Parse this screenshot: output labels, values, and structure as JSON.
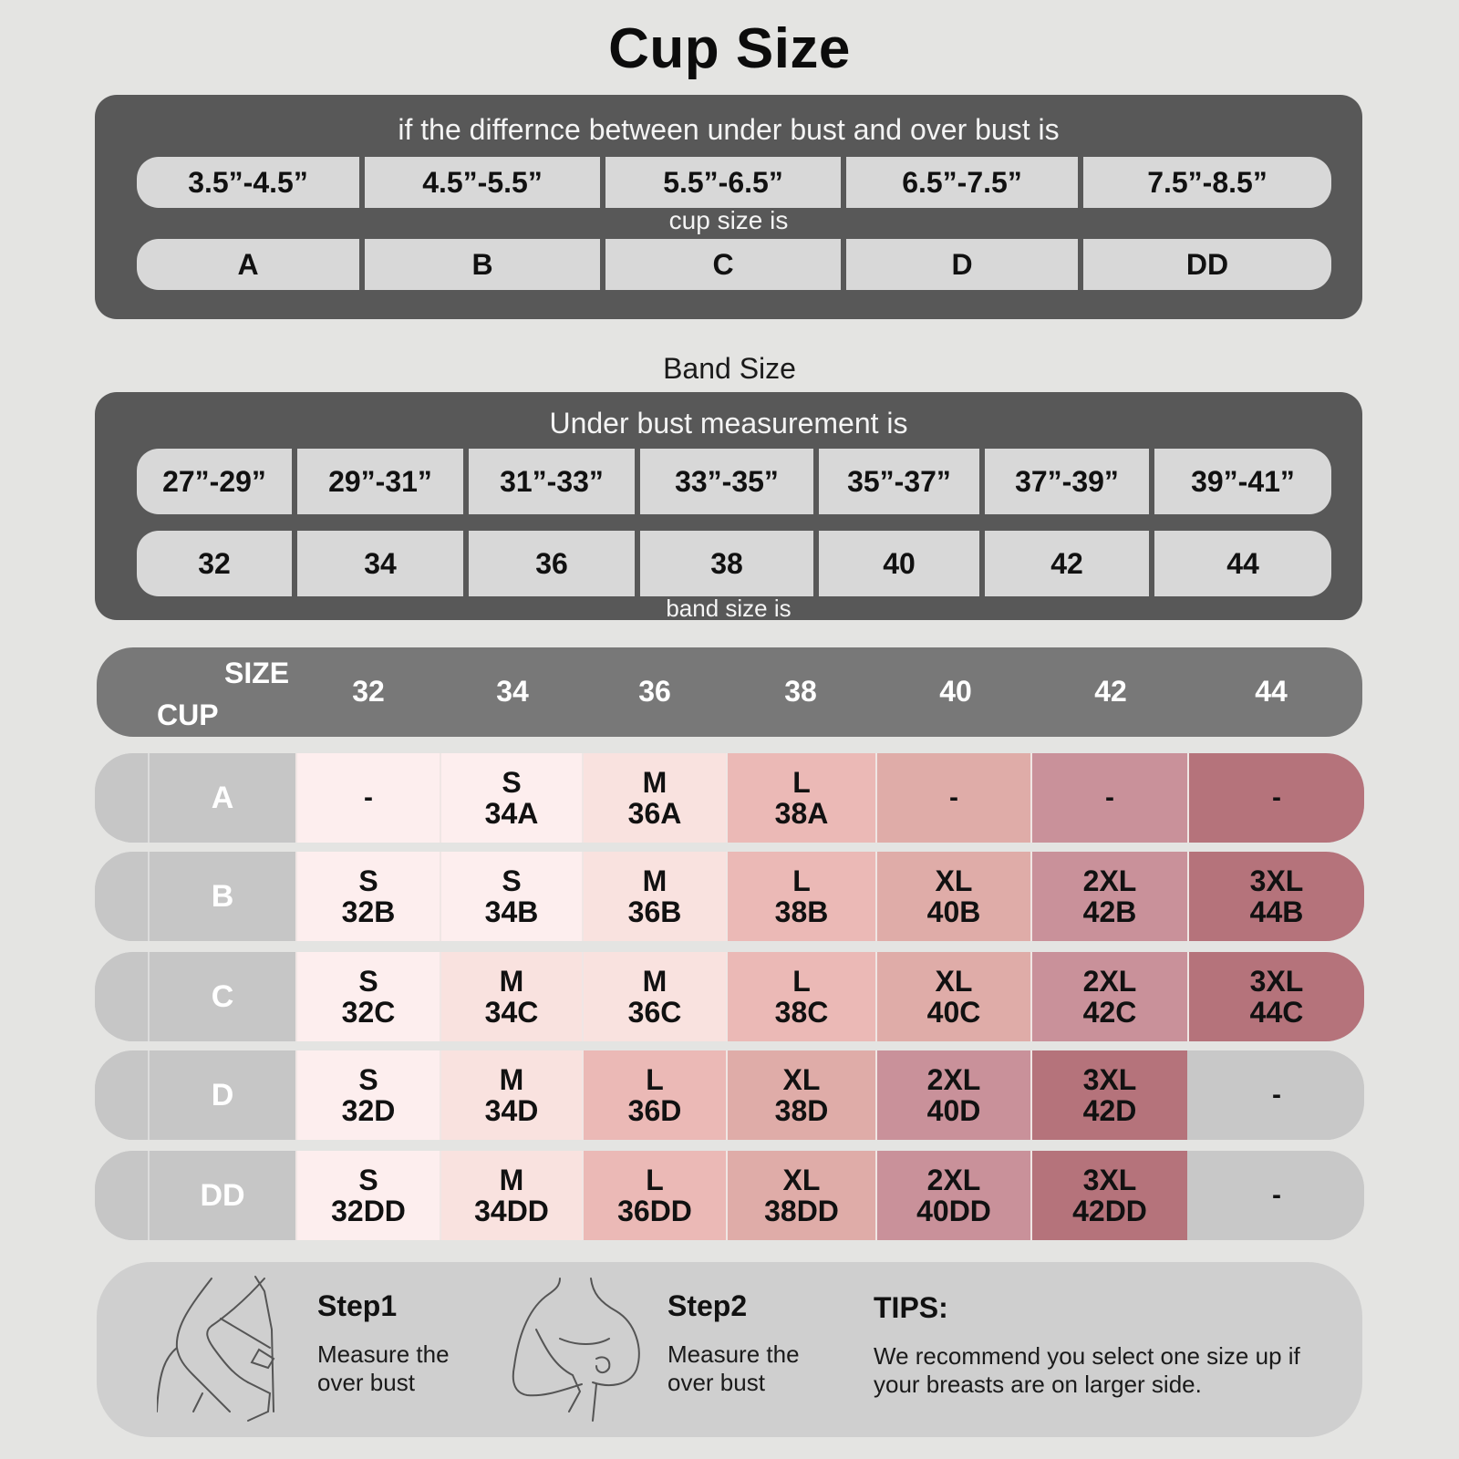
{
  "title": "Cup Size",
  "cup_section": {
    "caption": "if the differnce between under bust and over bust is",
    "differences": [
      "3.5”-4.5”",
      "4.5”-5.5”",
      "5.5”-6.5”",
      "6.5”-7.5”",
      "7.5”-8.5”"
    ],
    "sub_caption": "cup size is",
    "cups": [
      "A",
      "B",
      "C",
      "D",
      "DD"
    ]
  },
  "band_section": {
    "heading": "Band Size",
    "caption": "Under bust measurement is",
    "measurements": [
      "27”-29”",
      "29”-31”",
      "31”-33”",
      "33”-35”",
      "35”-37”",
      "37”-39”",
      "39”-41”"
    ],
    "bands": [
      "32",
      "34",
      "36",
      "38",
      "40",
      "42",
      "44"
    ],
    "sub_caption": "band size is"
  },
  "size_table": {
    "header": {
      "size_label": "SIZE",
      "cup_label": "CUP",
      "columns": [
        "32",
        "34",
        "36",
        "38",
        "40",
        "42",
        "44"
      ]
    },
    "colors": {
      "S": "#fdeeee",
      "M": "#f9e2df",
      "L": "#ebb9b6",
      "XL": "#dfaca8",
      "2XL": "#c9919a",
      "3XL": "#b5737b",
      "empty": "#c8c8c8"
    },
    "rows": [
      {
        "cup": "A",
        "cells": [
          {
            "size": "-",
            "code": "",
            "tone": "S"
          },
          {
            "size": "S",
            "code": "34A",
            "tone": "S"
          },
          {
            "size": "M",
            "code": "36A",
            "tone": "M"
          },
          {
            "size": "L",
            "code": "38A",
            "tone": "L"
          },
          {
            "size": "-",
            "code": "",
            "tone": "XL"
          },
          {
            "size": "-",
            "code": "",
            "tone": "2XL"
          },
          {
            "size": "-",
            "code": "",
            "tone": "3XL"
          }
        ]
      },
      {
        "cup": "B",
        "cells": [
          {
            "size": "S",
            "code": "32B",
            "tone": "S"
          },
          {
            "size": "S",
            "code": "34B",
            "tone": "S"
          },
          {
            "size": "M",
            "code": "36B",
            "tone": "M"
          },
          {
            "size": "L",
            "code": "38B",
            "tone": "L"
          },
          {
            "size": "XL",
            "code": "40B",
            "tone": "XL"
          },
          {
            "size": "2XL",
            "code": "42B",
            "tone": "2XL"
          },
          {
            "size": "3XL",
            "code": "44B",
            "tone": "3XL"
          }
        ]
      },
      {
        "cup": "C",
        "cells": [
          {
            "size": "S",
            "code": "32C",
            "tone": "S"
          },
          {
            "size": "M",
            "code": "34C",
            "tone": "M"
          },
          {
            "size": "M",
            "code": "36C",
            "tone": "M"
          },
          {
            "size": "L",
            "code": "38C",
            "tone": "L"
          },
          {
            "size": "XL",
            "code": "40C",
            "tone": "XL"
          },
          {
            "size": "2XL",
            "code": "42C",
            "tone": "2XL"
          },
          {
            "size": "3XL",
            "code": "44C",
            "tone": "3XL"
          }
        ]
      },
      {
        "cup": "D",
        "cells": [
          {
            "size": "S",
            "code": "32D",
            "tone": "S"
          },
          {
            "size": "M",
            "code": "34D",
            "tone": "M"
          },
          {
            "size": "L",
            "code": "36D",
            "tone": "L"
          },
          {
            "size": "XL",
            "code": "38D",
            "tone": "XL"
          },
          {
            "size": "2XL",
            "code": "40D",
            "tone": "2XL"
          },
          {
            "size": "3XL",
            "code": "42D",
            "tone": "3XL"
          },
          {
            "size": "-",
            "code": "",
            "tone": "empty"
          }
        ]
      },
      {
        "cup": "DD",
        "cells": [
          {
            "size": "S",
            "code": "32DD",
            "tone": "S"
          },
          {
            "size": "M",
            "code": "34DD",
            "tone": "M"
          },
          {
            "size": "L",
            "code": "36DD",
            "tone": "L"
          },
          {
            "size": "XL",
            "code": "38DD",
            "tone": "XL"
          },
          {
            "size": "2XL",
            "code": "40DD",
            "tone": "2XL"
          },
          {
            "size": "3XL",
            "code": "42DD",
            "tone": "3XL"
          },
          {
            "size": "-",
            "code": "",
            "tone": "empty"
          }
        ]
      }
    ]
  },
  "instructions": {
    "step1": {
      "title": "Step1",
      "text_line1": "Measure the",
      "text_line2": "over bust",
      "icon": "measuring-tape-figure-icon"
    },
    "step2": {
      "title": "Step2",
      "text_line1": "Measure the",
      "text_line2": "over bust",
      "icon": "measuring-bust-figure-icon"
    },
    "tips": {
      "title": "TIPS:",
      "text_line1": "We recommend you select one size up if",
      "text_line2": "your breasts are on larger side."
    }
  }
}
